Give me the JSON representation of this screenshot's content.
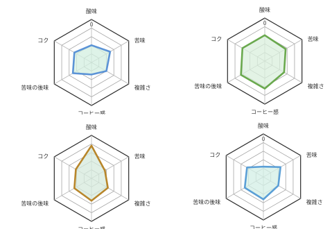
{
  "chart_data": [
    {
      "type": "radar",
      "axes": [
        "酸味",
        "苦味",
        "複雑さ",
        "コーヒー感",
        "苦味の後味",
        "コク"
      ],
      "range": [
        0,
        5
      ],
      "zero_label": "0",
      "series": [
        {
          "values": [
            2.0,
            2.5,
            2.0,
            1.4,
            2.5,
            2.3
          ],
          "color": "#5b93d6",
          "fill": "#d3efe0"
        }
      ]
    },
    {
      "type": "radar",
      "axes": [
        "酸味",
        "苦味",
        "複雑さ",
        "コーヒー感",
        "苦味の後味",
        "コク"
      ],
      "range": [
        0,
        5
      ],
      "zero_label": "0",
      "series": [
        {
          "values": [
            3.0,
            2.8,
            2.6,
            3.2,
            3.2,
            3.0
          ],
          "color": "#6aa94e",
          "fill": "#d9efdc"
        }
      ]
    },
    {
      "type": "radar",
      "axes": [
        "酸味",
        "苦味",
        "複雑さ",
        "コーヒー感",
        "苦味の後味",
        "コク"
      ],
      "range": [
        0,
        5
      ],
      "zero_label": "",
      "series": [
        {
          "values": [
            3.8,
            1.8,
            2.2,
            2.6,
            2.3,
            2.1
          ],
          "color": "#b8862b",
          "fill": "#d6eadc"
        }
      ]
    },
    {
      "type": "radar",
      "axes": [
        "酸味",
        "苦味",
        "複雑さ",
        "コーヒー感",
        "苦味の後味",
        "コク"
      ],
      "range": [
        0,
        5
      ],
      "zero_label": "0",
      "series": [
        {
          "values": [
            1.2,
            2.3,
            2.0,
            2.6,
            2.5,
            2.2
          ],
          "color": "#5b9fd6",
          "fill": "#d3efe6"
        }
      ]
    }
  ],
  "colors": {
    "grid": "#2b2b2b",
    "grid_inner": "#9a9a9a",
    "spoke": "#b5b5b5"
  }
}
